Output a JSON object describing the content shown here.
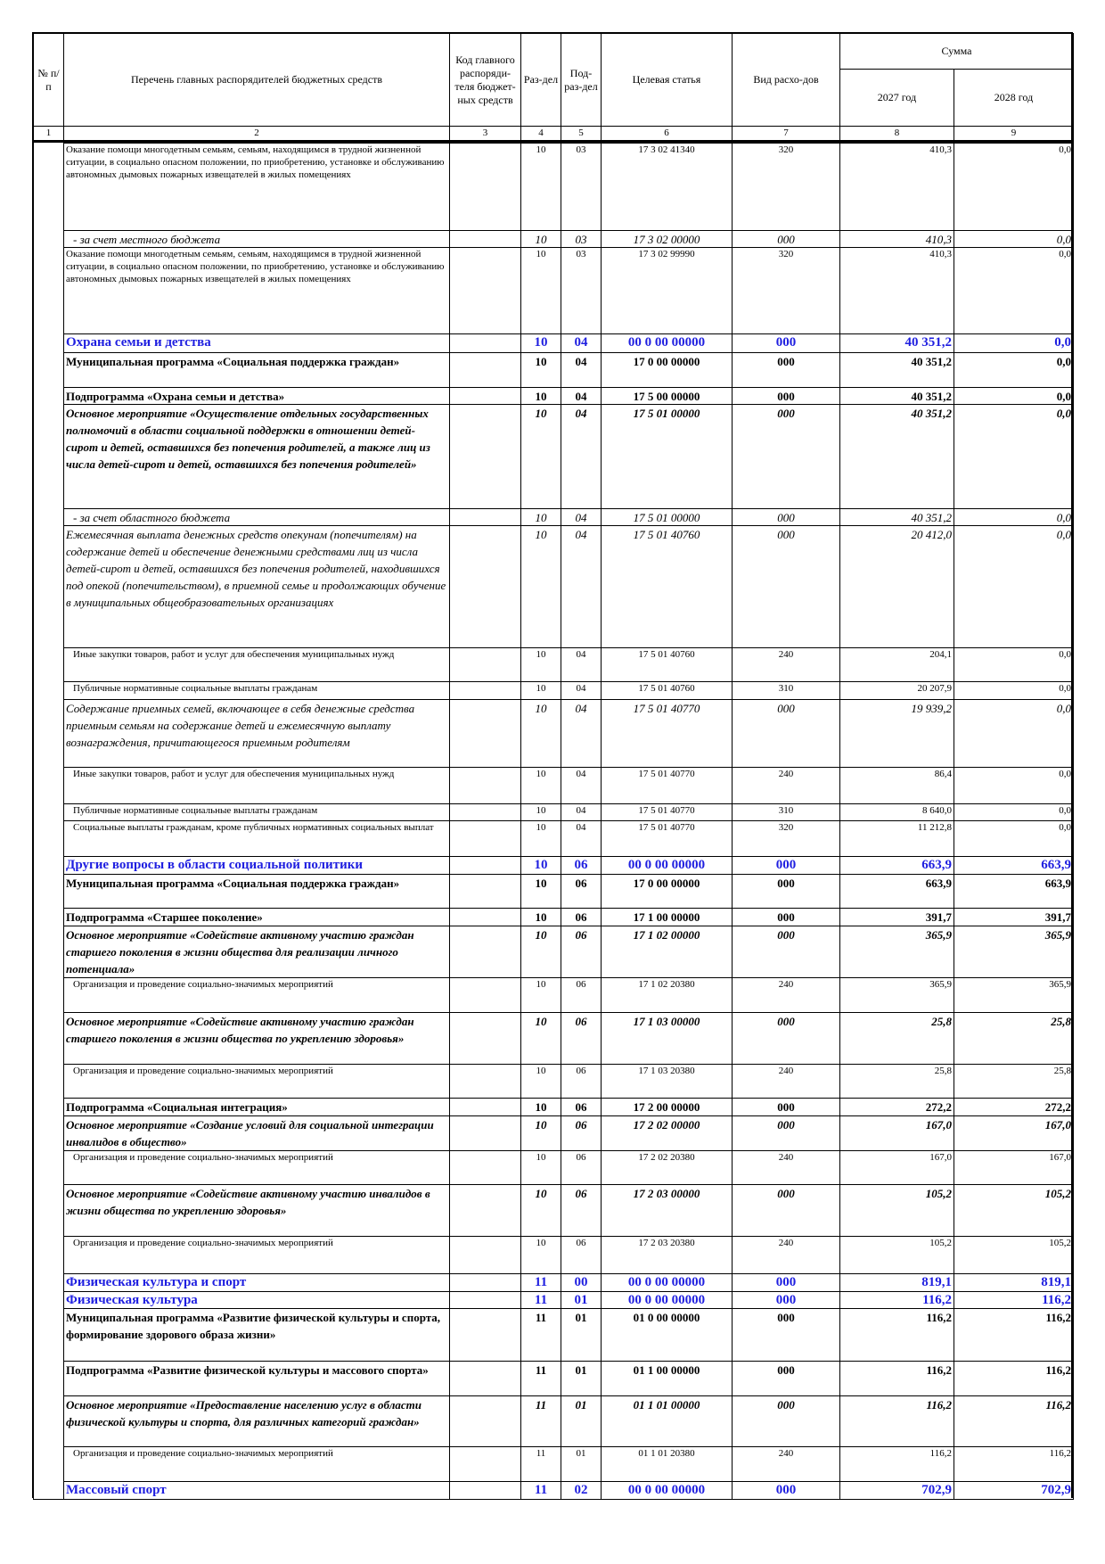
{
  "header": {
    "number": "№ п/п",
    "name": "Перечень главных распорядителей бюджетных средств",
    "code": "Код главного распоряди-теля бюджет-ных средств",
    "razdel": "Раз-дел",
    "podrazdel": "Под-раз-дел",
    "target": "Целевая статья",
    "vid": "Вид расхо-дов",
    "sum": "Сумма",
    "year1": "2027 год",
    "year2": "2028 год",
    "column_numbers": [
      1,
      2,
      3,
      4,
      5,
      6,
      7,
      8,
      9
    ]
  },
  "table": {
    "rows": [
      [
        "Оказание помощи многодетным семьям, семьям, находящимся в трудной жизненной ситуации, в социально опасном положении, по приобретению, установке и обслуживанию автономных дымовых пожарных извещателей в жилых помещениях",
        "10",
        "03",
        "17 3 02 41340",
        "320",
        "410,3",
        "0,0"
      ],
      [
        "- за счет местного бюджета",
        "10",
        "03",
        "17 3 02 00000",
        "000",
        "410,3",
        "0,0"
      ],
      [
        "Оказание помощи многодетным семьям, семьям, находящимся в трудной жизненной ситуации, в социально опасном положении, по приобретению, установке и обслуживанию автономных дымовых пожарных извещателей в жилых помещениях",
        "10",
        "03",
        "17 3 02 99990",
        "320",
        "410,3",
        "0,0"
      ],
      [
        "Охрана семьи и детства",
        "10",
        "04",
        "00 0 00 00000",
        "000",
        "40 351,2",
        "0,0"
      ],
      [
        "Муниципальная программа «Социальная поддержка граждан»",
        "10",
        "04",
        "17 0 00 00000",
        "000",
        "40 351,2",
        "0,0"
      ],
      [
        "Подпрограмма «Охрана семьи и детства»",
        "10",
        "04",
        "17 5 00 00000",
        "000",
        "40 351,2",
        "0,0"
      ],
      [
        "Основное мероприятие «Осуществление отдельных государственных полномочий в области социальной поддержки в отношении детей-сирот и детей, оставшихся без попечения родителей, а также лиц из числа детей-сирот и детей, оставшихся без попечения родителей»",
        "10",
        "04",
        "17 5 01 00000",
        "000",
        "40 351,2",
        "0,0"
      ],
      [
        "- за счет областного бюджета",
        "10",
        "04",
        "17 5 01 00000",
        "000",
        "40 351,2",
        "0,0"
      ],
      [
        "Ежемесячная выплата денежных средств опекунам (попечителям) на содержание детей и обеспечение денежными средствами лиц из числа детей-сирот и детей, оставшихся без попечения родителей, находившихся под опекой (попечительством), в приемной семье и продолжающих обучение в муниципальных общеобразовательных организациях",
        "10",
        "04",
        "17 5 01 40760",
        "000",
        "20 412,0",
        "0,0"
      ],
      [
        "Иные закупки товаров, работ и услуг для обеспечения муниципальных нужд",
        "10",
        "04",
        "17 5 01 40760",
        "240",
        "204,1",
        "0,0"
      ],
      [
        "Публичные нормативные социальные выплаты гражданам",
        "10",
        "04",
        "17 5 01 40760",
        "310",
        "20 207,9",
        "0,0"
      ],
      [
        "Содержание приемных семей, включающее в себя денежные средства приемным семьям на содержание детей и ежемесячную выплату вознаграждения, причитающегося приемным родителям",
        "10",
        "04",
        "17 5 01 40770",
        "000",
        "19 939,2",
        "0,0"
      ],
      [
        "Иные закупки товаров, работ и услуг для обеспечения муниципальных нужд",
        "10",
        "04",
        "17 5 01 40770",
        "240",
        "86,4",
        "0,0"
      ],
      [
        "Публичные нормативные социальные выплаты гражданам",
        "10",
        "04",
        "17 5 01 40770",
        "310",
        "8 640,0",
        "0,0"
      ],
      [
        "Социальные выплаты гражданам, кроме публичных нормативных социальных выплат",
        "10",
        "04",
        "17 5 01 40770",
        "320",
        "11 212,8",
        "0,0"
      ],
      [
        "Другие вопросы в области социальной политики",
        "10",
        "06",
        "00 0 00 00000",
        "000",
        "663,9",
        "663,9"
      ],
      [
        "Муниципальная программа «Социальная поддержка граждан»",
        "10",
        "06",
        "17 0 00 00000",
        "000",
        "663,9",
        "663,9"
      ],
      [
        "Подпрограмма «Старшее поколение»",
        "10",
        "06",
        "17 1 00 00000",
        "000",
        "391,7",
        "391,7"
      ],
      [
        "Основное мероприятие «Содействие активному участию граждан старшего поколения в жизни общества для реализации личного потенциала»",
        "10",
        "06",
        "17 1 02 00000",
        "000",
        "365,9",
        "365,9"
      ],
      [
        "Организация и проведение социально-значимых мероприятий",
        "10",
        "06",
        "17 1 02 20380",
        "240",
        "365,9",
        "365,9"
      ],
      [
        "Основное мероприятие «Содействие активному участию граждан старшего поколения в жизни общества по укреплению здоровья»",
        "10",
        "06",
        "17 1 03 00000",
        "000",
        "25,8",
        "25,8"
      ],
      [
        "Организация и проведение социально-значимых мероприятий",
        "10",
        "06",
        "17 1 03 20380",
        "240",
        "25,8",
        "25,8"
      ],
      [
        "Подпрограмма «Социальная интеграция»",
        "10",
        "06",
        "17 2 00 00000",
        "000",
        "272,2",
        "272,2"
      ],
      [
        "Основное мероприятие «Создание условий для социальной интеграции инвалидов в общество»",
        "10",
        "06",
        "17 2 02 00000",
        "000",
        "167,0",
        "167,0"
      ],
      [
        "Организация и проведение социально-значимых мероприятий",
        "10",
        "06",
        "17 2 02 20380",
        "240",
        "167,0",
        "167,0"
      ],
      [
        "Основное мероприятие «Содействие активному участию инвалидов в жизни общества по укреплению здоровья»",
        "10",
        "06",
        "17 2 03 00000",
        "000",
        "105,2",
        "105,2"
      ],
      [
        "Организация и проведение социально-значимых мероприятий",
        "10",
        "06",
        "17 2 03 20380",
        "240",
        "105,2",
        "105,2"
      ],
      [
        "Физическая культура и спорт",
        "11",
        "00",
        "00 0 00 00000",
        "000",
        "819,1",
        "819,1"
      ],
      [
        "Физическая культура",
        "11",
        "01",
        "00 0 00 00000",
        "000",
        "116,2",
        "116,2"
      ],
      [
        "Муниципальная программа «Развитие физической культуры и спорта, формирование здорового образа жизни»",
        "11",
        "01",
        "01 0 00 00000",
        "000",
        "116,2",
        "116,2"
      ],
      [
        "Подпрограмма «Развитие физической культуры и массового спорта»",
        "11",
        "01",
        "01 1 00 00000",
        "000",
        "116,2",
        "116,2"
      ],
      [
        "Основное мероприятие «Предоставление населению услуг в области физической культуры и спорта, для различных категорий граждан»",
        "11",
        "01",
        "01 1 01 00000",
        "000",
        "116,2",
        "116,2"
      ],
      [
        "Организация и проведение социально-значимых мероприятий",
        "11",
        "01",
        "01 1 01 20380",
        "240",
        "116,2",
        "116,2"
      ],
      [
        "Массовый спорт",
        "11",
        "02",
        "00 0 00 00000",
        "000",
        "702,9",
        "702,9"
      ]
    ]
  }
}
